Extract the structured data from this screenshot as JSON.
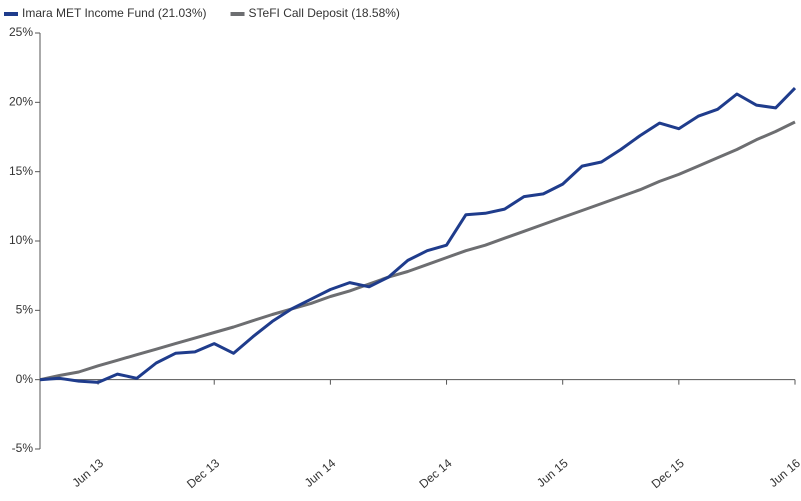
{
  "chart_data": {
    "type": "line",
    "categories": [
      null,
      null,
      null,
      "Jun 13",
      null,
      null,
      null,
      null,
      null,
      "Dec 13",
      null,
      null,
      null,
      null,
      null,
      "Jun 14",
      null,
      null,
      null,
      null,
      null,
      "Dec 14",
      null,
      null,
      null,
      null,
      null,
      "Jun 15",
      null,
      null,
      null,
      null,
      null,
      "Dec 15",
      null,
      null,
      null,
      null,
      null,
      "Jun 16"
    ],
    "series": [
      {
        "name": "Imara MET Income Fund (21.03%)",
        "color": "#1f3c8c",
        "values": [
          0,
          0.1,
          -0.1,
          -0.2,
          0.4,
          0.1,
          1.2,
          1.9,
          2.0,
          2.6,
          1.9,
          3.1,
          4.2,
          5.1,
          5.8,
          6.5,
          7.0,
          6.7,
          7.4,
          8.6,
          9.3,
          9.7,
          11.9,
          12.0,
          12.3,
          13.2,
          13.4,
          14.1,
          15.4,
          15.7,
          16.6,
          17.6,
          18.5,
          18.1,
          19.0,
          19.5,
          20.6,
          19.8,
          19.6,
          21.03
        ]
      },
      {
        "name": "STeFI Call Deposit (18.58%)",
        "color": "#6d6e71",
        "values": [
          0,
          0.3,
          0.55,
          1.0,
          1.4,
          1.8,
          2.2,
          2.6,
          3.0,
          3.4,
          3.8,
          4.25,
          4.7,
          5.1,
          5.5,
          6.0,
          6.4,
          6.9,
          7.4,
          7.8,
          8.3,
          8.8,
          9.3,
          9.7,
          10.2,
          10.7,
          11.2,
          11.7,
          12.2,
          12.7,
          13.2,
          13.7,
          14.3,
          14.8,
          15.4,
          16.0,
          16.6,
          17.3,
          17.9,
          18.58
        ]
      }
    ],
    "ylim": [
      -5,
      25
    ],
    "yticks": [
      {
        "value": -5,
        "label": "-5%"
      },
      {
        "value": 0,
        "label": "0%"
      },
      {
        "value": 5,
        "label": "5%"
      },
      {
        "value": 10,
        "label": "10%"
      },
      {
        "value": 15,
        "label": "15%"
      },
      {
        "value": 20,
        "label": "20%"
      },
      {
        "value": 25,
        "label": "25%"
      }
    ],
    "legend": "top-left",
    "grid": false
  }
}
